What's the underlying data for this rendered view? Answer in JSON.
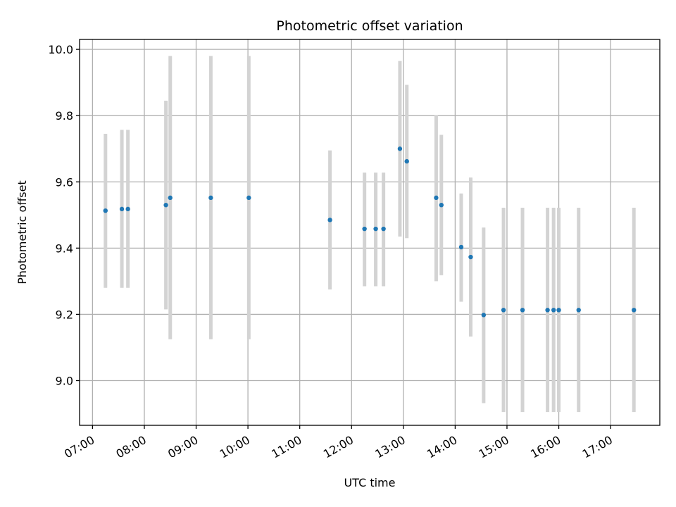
{
  "chart_data": {
    "type": "scatter",
    "title": "Photometric offset variation",
    "xlabel": "UTC time",
    "ylabel": "Photometric offset",
    "xlim": [
      "06:45",
      "17:57"
    ],
    "ylim": [
      8.865,
      10.03
    ],
    "x_ticks": [
      "07:00",
      "08:00",
      "09:00",
      "10:00",
      "11:00",
      "12:00",
      "13:00",
      "14:00",
      "15:00",
      "16:00",
      "17:00"
    ],
    "y_ticks": [
      "9.0",
      "9.2",
      "9.4",
      "9.6",
      "9.8",
      "10.0"
    ],
    "grid": true,
    "marker_color": "#1f77b4",
    "errorbar_color": "#d3d3d3",
    "points": [
      {
        "x": "07:15",
        "y": 9.513,
        "lo": 9.28,
        "hi": 9.745
      },
      {
        "x": "07:34",
        "y": 9.518,
        "lo": 9.28,
        "hi": 9.757
      },
      {
        "x": "07:41",
        "y": 9.518,
        "lo": 9.28,
        "hi": 9.757
      },
      {
        "x": "08:25",
        "y": 9.53,
        "lo": 9.215,
        "hi": 9.845
      },
      {
        "x": "08:30",
        "y": 9.552,
        "lo": 9.125,
        "hi": 9.98
      },
      {
        "x": "09:17",
        "y": 9.552,
        "lo": 9.125,
        "hi": 9.98
      },
      {
        "x": "10:01",
        "y": 9.552,
        "lo": 9.125,
        "hi": 9.98
      },
      {
        "x": "11:35",
        "y": 9.485,
        "lo": 9.275,
        "hi": 9.695
      },
      {
        "x": "12:15",
        "y": 9.458,
        "lo": 9.285,
        "hi": 9.628
      },
      {
        "x": "12:28",
        "y": 9.458,
        "lo": 9.285,
        "hi": 9.628
      },
      {
        "x": "12:37",
        "y": 9.458,
        "lo": 9.285,
        "hi": 9.628
      },
      {
        "x": "12:56",
        "y": 9.7,
        "lo": 9.435,
        "hi": 9.965
      },
      {
        "x": "13:04",
        "y": 9.662,
        "lo": 9.43,
        "hi": 9.893
      },
      {
        "x": "13:38",
        "y": 9.552,
        "lo": 9.3,
        "hi": 9.802
      },
      {
        "x": "13:44",
        "y": 9.53,
        "lo": 9.318,
        "hi": 9.742
      },
      {
        "x": "14:07",
        "y": 9.403,
        "lo": 9.238,
        "hi": 9.565
      },
      {
        "x": "14:18",
        "y": 9.373,
        "lo": 9.133,
        "hi": 9.613
      },
      {
        "x": "14:33",
        "y": 9.198,
        "lo": 8.932,
        "hi": 9.462
      },
      {
        "x": "14:56",
        "y": 9.213,
        "lo": 8.905,
        "hi": 9.522
      },
      {
        "x": "15:18",
        "y": 9.213,
        "lo": 8.905,
        "hi": 9.522
      },
      {
        "x": "15:47",
        "y": 9.213,
        "lo": 8.905,
        "hi": 9.522
      },
      {
        "x": "15:54",
        "y": 9.213,
        "lo": 8.905,
        "hi": 9.522
      },
      {
        "x": "16:00",
        "y": 9.213,
        "lo": 8.905,
        "hi": 9.522
      },
      {
        "x": "16:23",
        "y": 9.213,
        "lo": 8.905,
        "hi": 9.522
      },
      {
        "x": "17:27",
        "y": 9.213,
        "lo": 8.905,
        "hi": 9.522
      }
    ]
  }
}
